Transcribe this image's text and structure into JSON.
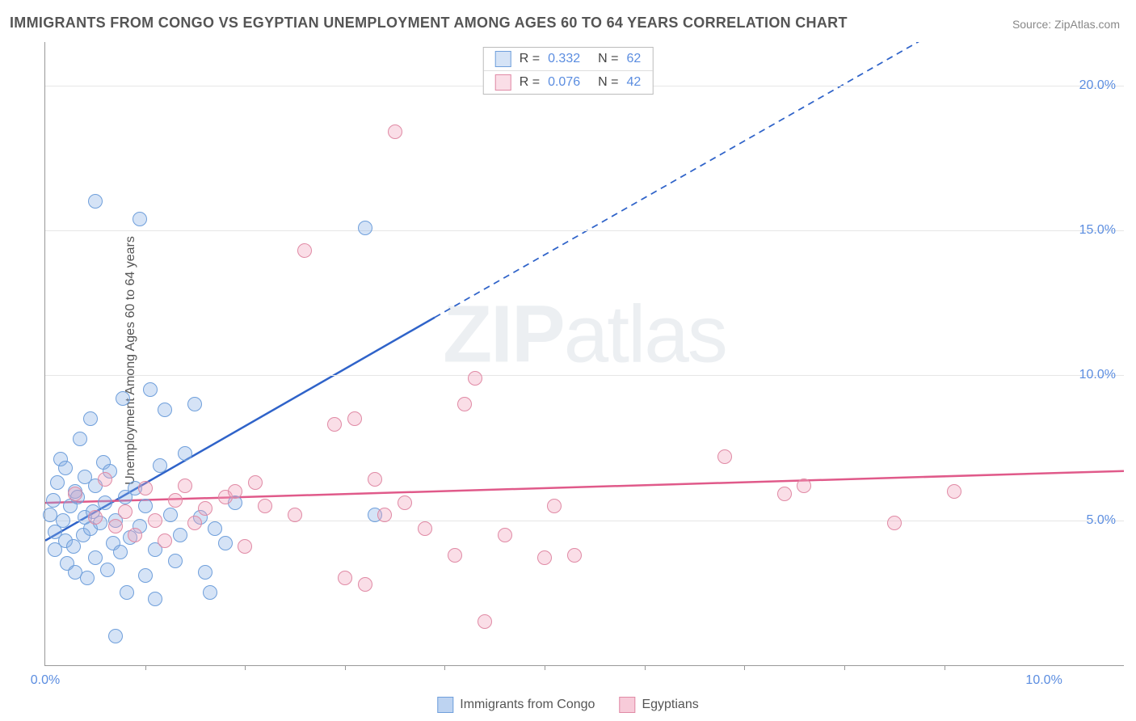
{
  "title": "IMMIGRANTS FROM CONGO VS EGYPTIAN UNEMPLOYMENT AMONG AGES 60 TO 64 YEARS CORRELATION CHART",
  "source": "Source: ZipAtlas.com",
  "ylabel": "Unemployment Among Ages 60 to 64 years",
  "watermark_a": "ZIP",
  "watermark_b": "atlas",
  "chart": {
    "type": "scatter",
    "xlim": [
      0,
      10.8
    ],
    "ylim": [
      0,
      21.5
    ],
    "y_ticks": [
      5.0,
      10.0,
      15.0,
      20.0
    ],
    "y_tick_labels": [
      "5.0%",
      "10.0%",
      "15.0%",
      "20.0%"
    ],
    "x_ticks": [
      0.0,
      10.0
    ],
    "x_tick_labels": [
      "0.0%",
      "10.0%"
    ],
    "x_minor_ticks": [
      1,
      2,
      3,
      4,
      5,
      6,
      7,
      8,
      9
    ],
    "gridline_color": "#e6e6e6",
    "axis_color": "#999999",
    "tick_label_color": "#5b8de0",
    "background_color": "#ffffff",
    "marker_radius": 9,
    "marker_stroke_width": 1.5,
    "series": [
      {
        "name": "Immigrants from Congo",
        "r_value": "0.332",
        "n_value": "62",
        "fill": "rgba(135,175,230,0.35)",
        "stroke": "#6f9fdb",
        "trend": {
          "x1": 0,
          "y1": 4.3,
          "x2": 3.9,
          "y2": 12.0,
          "color": "#2f63c9",
          "width": 2.5,
          "dash_from_x": 3.9,
          "dash_to_x": 9.4,
          "dash_to_y": 22.8
        },
        "points": [
          [
            0.05,
            5.2
          ],
          [
            0.08,
            5.7
          ],
          [
            0.1,
            4.6
          ],
          [
            0.1,
            4.0
          ],
          [
            0.12,
            6.3
          ],
          [
            0.15,
            7.1
          ],
          [
            0.18,
            5.0
          ],
          [
            0.2,
            4.3
          ],
          [
            0.2,
            6.8
          ],
          [
            0.22,
            3.5
          ],
          [
            0.25,
            5.5
          ],
          [
            0.28,
            4.1
          ],
          [
            0.3,
            6.0
          ],
          [
            0.3,
            3.2
          ],
          [
            0.32,
            5.8
          ],
          [
            0.35,
            7.8
          ],
          [
            0.38,
            4.5
          ],
          [
            0.4,
            5.1
          ],
          [
            0.4,
            6.5
          ],
          [
            0.42,
            3.0
          ],
          [
            0.45,
            4.7
          ],
          [
            0.45,
            8.5
          ],
          [
            0.48,
            5.3
          ],
          [
            0.5,
            6.2
          ],
          [
            0.5,
            3.7
          ],
          [
            0.5,
            16.0
          ],
          [
            0.55,
            4.9
          ],
          [
            0.58,
            7.0
          ],
          [
            0.6,
            5.6
          ],
          [
            0.62,
            3.3
          ],
          [
            0.65,
            6.7
          ],
          [
            0.68,
            4.2
          ],
          [
            0.7,
            5.0
          ],
          [
            0.7,
            1.0
          ],
          [
            0.75,
            3.9
          ],
          [
            0.78,
            9.2
          ],
          [
            0.8,
            5.8
          ],
          [
            0.82,
            2.5
          ],
          [
            0.85,
            4.4
          ],
          [
            0.9,
            6.1
          ],
          [
            0.95,
            4.8
          ],
          [
            0.95,
            15.4
          ],
          [
            1.0,
            5.5
          ],
          [
            1.0,
            3.1
          ],
          [
            1.05,
            9.5
          ],
          [
            1.1,
            4.0
          ],
          [
            1.1,
            2.3
          ],
          [
            1.15,
            6.9
          ],
          [
            1.2,
            8.8
          ],
          [
            1.25,
            5.2
          ],
          [
            1.3,
            3.6
          ],
          [
            1.35,
            4.5
          ],
          [
            1.4,
            7.3
          ],
          [
            1.5,
            9.0
          ],
          [
            1.55,
            5.1
          ],
          [
            1.6,
            3.2
          ],
          [
            1.65,
            2.5
          ],
          [
            1.7,
            4.7
          ],
          [
            1.8,
            4.2
          ],
          [
            1.9,
            5.6
          ],
          [
            3.2,
            15.1
          ],
          [
            3.3,
            5.2
          ]
        ]
      },
      {
        "name": "Egyptians",
        "r_value": "0.076",
        "n_value": "42",
        "fill": "rgba(240,160,185,0.35)",
        "stroke": "#e08aa5",
        "trend": {
          "x1": 0,
          "y1": 5.6,
          "x2": 10.8,
          "y2": 6.7,
          "color": "#e05a8a",
          "width": 2.5
        },
        "points": [
          [
            0.3,
            5.9
          ],
          [
            0.5,
            5.1
          ],
          [
            0.6,
            6.4
          ],
          [
            0.7,
            4.8
          ],
          [
            0.8,
            5.3
          ],
          [
            0.9,
            4.5
          ],
          [
            1.0,
            6.1
          ],
          [
            1.1,
            5.0
          ],
          [
            1.2,
            4.3
          ],
          [
            1.3,
            5.7
          ],
          [
            1.4,
            6.2
          ],
          [
            1.5,
            4.9
          ],
          [
            1.6,
            5.4
          ],
          [
            1.8,
            5.8
          ],
          [
            1.9,
            6.0
          ],
          [
            2.0,
            4.1
          ],
          [
            2.1,
            6.3
          ],
          [
            2.2,
            5.5
          ],
          [
            2.5,
            5.2
          ],
          [
            2.6,
            14.3
          ],
          [
            2.9,
            8.3
          ],
          [
            3.0,
            3.0
          ],
          [
            3.1,
            8.5
          ],
          [
            3.2,
            2.8
          ],
          [
            3.3,
            6.4
          ],
          [
            3.4,
            5.2
          ],
          [
            3.5,
            18.4
          ],
          [
            3.6,
            5.6
          ],
          [
            3.8,
            4.7
          ],
          [
            4.1,
            3.8
          ],
          [
            4.2,
            9.0
          ],
          [
            4.3,
            9.9
          ],
          [
            4.4,
            1.5
          ],
          [
            4.6,
            4.5
          ],
          [
            5.0,
            3.7
          ],
          [
            5.1,
            5.5
          ],
          [
            5.3,
            3.8
          ],
          [
            6.8,
            7.2
          ],
          [
            7.4,
            5.9
          ],
          [
            7.6,
            6.2
          ],
          [
            8.5,
            4.9
          ],
          [
            9.1,
            6.0
          ]
        ]
      }
    ]
  },
  "legend_bottom": [
    {
      "label": "Immigrants from Congo",
      "fill": "rgba(135,175,230,0.55)",
      "stroke": "#6f9fdb"
    },
    {
      "label": "Egyptians",
      "fill": "rgba(240,160,185,0.55)",
      "stroke": "#e08aa5"
    }
  ]
}
